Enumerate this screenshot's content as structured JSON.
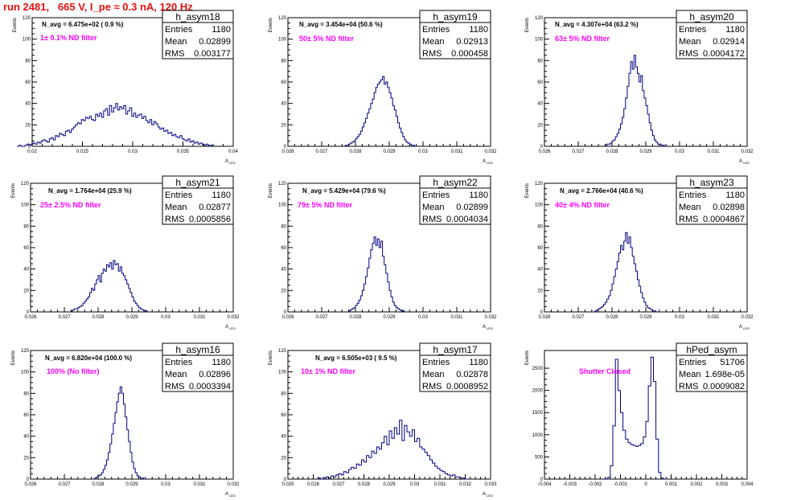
{
  "page": {
    "title": "run 2481,   665 V, I_pe ≈ 0.3 nA, 120 Hz"
  },
  "stat_labels": {
    "entries": "Entries",
    "mean": "Mean",
    "rms": "RMS"
  },
  "colors": {
    "hist": "#000080",
    "title": "#e8100f",
    "filter": "#ff00ff"
  },
  "chart_data": [
    {
      "type": "bar",
      "name": "h_asym18",
      "ylabel": "Events",
      "xlabel": "A_LED",
      "xlim": [
        0.02,
        0.04
      ],
      "ylim": [
        0,
        120
      ],
      "xticks": [
        0.02,
        0.025,
        0.03,
        0.035,
        0.04
      ],
      "xtick_labels": [
        "0.02",
        "0.025",
        "0.03",
        "0.035",
        "0.04"
      ],
      "yticks": [
        0,
        20,
        40,
        60,
        80,
        100,
        120
      ],
      "navg": "N_avg = 6.475e+02 ( 0.9 %)",
      "filter": "1± 0.1% ND filter",
      "stats": {
        "entries": "1180",
        "mean": "0.02899",
        "rms": "0.003177"
      },
      "hist": {
        "x0": 0.0185,
        "bin": 0.0002,
        "values": [
          0,
          1,
          0,
          0,
          1,
          2,
          1,
          2,
          3,
          2,
          4,
          3,
          5,
          6,
          5,
          4,
          7,
          8,
          6,
          10,
          9,
          12,
          11,
          10,
          14,
          15,
          13,
          16,
          18,
          20,
          22,
          21,
          25,
          24,
          27,
          26,
          28,
          25,
          24,
          30,
          28,
          31,
          27,
          33,
          35,
          29,
          38,
          32,
          36,
          40,
          34,
          37,
          35,
          38,
          30,
          33,
          36,
          28,
          31,
          27,
          29,
          30,
          26,
          28,
          24,
          22,
          25,
          20,
          23,
          21,
          18,
          16,
          17,
          14,
          15,
          12,
          13,
          10,
          11,
          9,
          8,
          10,
          7,
          6,
          5,
          7,
          4,
          5,
          3,
          4,
          2,
          3,
          2,
          1,
          2,
          1,
          1,
          0
        ]
      }
    },
    {
      "type": "bar",
      "name": "h_asym19",
      "ylabel": "Events",
      "xlabel": "A_LED",
      "xlim": [
        0.026,
        0.032
      ],
      "ylim": [
        0,
        120
      ],
      "xticks": [
        0.026,
        0.027,
        0.028,
        0.029,
        0.03,
        0.031,
        0.032
      ],
      "xtick_labels": [
        "0.026",
        "0.027",
        "0.028",
        "0.029",
        "0.03",
        "0.031",
        "0.032"
      ],
      "yticks": [
        0,
        20,
        40,
        60,
        80,
        100,
        120
      ],
      "navg": "N_avg = 3.454e+04 (50.6 %)",
      "filter": "50± 5% ND filter",
      "stats": {
        "entries": "1180",
        "mean": "0.02913",
        "rms": "0.000458"
      },
      "hist": {
        "x0": 0.0277,
        "bin": 5e-05,
        "values": [
          1,
          1,
          2,
          3,
          4,
          5,
          7,
          9,
          11,
          14,
          18,
          22,
          26,
          31,
          35,
          40,
          44,
          50,
          55,
          58,
          60,
          62,
          65,
          58,
          60,
          55,
          50,
          45,
          38,
          34,
          28,
          22,
          17,
          13,
          9,
          6,
          4,
          3,
          2,
          1,
          1,
          0
        ]
      }
    },
    {
      "type": "bar",
      "name": "h_asym20",
      "ylabel": "Events",
      "xlabel": "A_LED",
      "xlim": [
        0.026,
        0.032
      ],
      "ylim": [
        0,
        120
      ],
      "xticks": [
        0.026,
        0.027,
        0.028,
        0.029,
        0.03,
        0.031,
        0.032
      ],
      "xtick_labels": [
        "0.026",
        "0.027",
        "0.028",
        "0.029",
        "0.03",
        "0.031",
        "0.032"
      ],
      "yticks": [
        0,
        20,
        40,
        60,
        80,
        100,
        120
      ],
      "navg": "N_avg = 4.307e+04 (63.2 %)",
      "filter": "63± 5% ND filter",
      "stats": {
        "entries": "1180",
        "mean": "0.02914",
        "rms": "0.0004172"
      },
      "hist": {
        "x0": 0.0278,
        "bin": 5e-05,
        "values": [
          1,
          2,
          2,
          3,
          5,
          6,
          9,
          12,
          16,
          21,
          27,
          35,
          45,
          56,
          68,
          79,
          72,
          85,
          74,
          68,
          60,
          66,
          52,
          45,
          38,
          30,
          22,
          15,
          10,
          6,
          4,
          2,
          2,
          1,
          1,
          0
        ]
      }
    },
    {
      "type": "bar",
      "name": "h_asym21",
      "ylabel": "Events",
      "xlabel": "A_LED",
      "xlim": [
        0.026,
        0.032
      ],
      "ylim": [
        0,
        120
      ],
      "xticks": [
        0.026,
        0.027,
        0.028,
        0.029,
        0.03,
        0.031,
        0.032
      ],
      "xtick_labels": [
        "0.026",
        "0.027",
        "0.028",
        "0.029",
        "0.03",
        "0.031",
        "0.032"
      ],
      "yticks": [
        0,
        20,
        40,
        60,
        80,
        100,
        120
      ],
      "navg": "N_avg = 1.764e+04 (25.9 %)",
      "filter": "25± 2.5% ND filter",
      "stats": {
        "entries": "1180",
        "mean": "0.02877",
        "rms": "0.0005856"
      },
      "hist": {
        "x0": 0.0272,
        "bin": 5e-05,
        "values": [
          1,
          2,
          3,
          3,
          4,
          5,
          6,
          8,
          10,
          12,
          14,
          18,
          22,
          20,
          26,
          30,
          34,
          28,
          36,
          40,
          38,
          44,
          42,
          46,
          40,
          48,
          44,
          45,
          38,
          42,
          36,
          34,
          30,
          26,
          22,
          18,
          14,
          10,
          8,
          6,
          4,
          3,
          2,
          1,
          1,
          0
        ]
      }
    },
    {
      "type": "bar",
      "name": "h_asym22",
      "ylabel": "Events",
      "xlabel": "A_LED",
      "xlim": [
        0.026,
        0.032
      ],
      "ylim": [
        0,
        120
      ],
      "xticks": [
        0.026,
        0.027,
        0.028,
        0.029,
        0.03,
        0.031,
        0.032
      ],
      "xtick_labels": [
        "0.026",
        "0.027",
        "0.028",
        "0.029",
        "0.03",
        "0.031",
        "0.032"
      ],
      "yticks": [
        0,
        20,
        40,
        60,
        80,
        100,
        120
      ],
      "navg": "N_avg = 5.429e+04 (79.6 %)",
      "filter": "79± 5% ND filter",
      "stats": {
        "entries": "1180",
        "mean": "0.02899",
        "rms": "0.0004034"
      },
      "hist": {
        "x0": 0.0278,
        "bin": 5e-05,
        "values": [
          1,
          2,
          3,
          4,
          6,
          8,
          11,
          15,
          20,
          26,
          33,
          41,
          50,
          58,
          64,
          70,
          62,
          68,
          60,
          66,
          52,
          44,
          36,
          28,
          20,
          14,
          9,
          6,
          4,
          3,
          2,
          1,
          1,
          0
        ]
      }
    },
    {
      "type": "bar",
      "name": "h_asym23",
      "ylabel": "Events",
      "xlabel": "A_LED",
      "xlim": [
        0.026,
        0.032
      ],
      "ylim": [
        0,
        120
      ],
      "xticks": [
        0.026,
        0.027,
        0.028,
        0.029,
        0.03,
        0.031,
        0.032
      ],
      "xtick_labels": [
        "0.026",
        "0.027",
        "0.028",
        "0.029",
        "0.03",
        "0.031",
        "0.032"
      ],
      "yticks": [
        0,
        20,
        40,
        60,
        80,
        100,
        120
      ],
      "navg": "N_avg = 2.766e+04 (40.6 %)",
      "filter": "40± 4% ND filter",
      "stats": {
        "entries": "1180",
        "mean": "0.02898",
        "rms": "0.0004867"
      },
      "hist": {
        "x0": 0.0275,
        "bin": 5e-05,
        "values": [
          1,
          2,
          3,
          4,
          5,
          7,
          9,
          12,
          15,
          20,
          26,
          33,
          40,
          47,
          55,
          62,
          58,
          66,
          74,
          64,
          70,
          60,
          52,
          45,
          38,
          30,
          24,
          18,
          13,
          9,
          6,
          4,
          3,
          2,
          1,
          1,
          0
        ]
      }
    },
    {
      "type": "bar",
      "name": "h_asym16",
      "ylabel": "Events",
      "xlabel": "A_LED",
      "xlim": [
        0.026,
        0.032
      ],
      "ylim": [
        0,
        120
      ],
      "xticks": [
        0.026,
        0.027,
        0.028,
        0.029,
        0.03,
        0.031,
        0.032
      ],
      "xtick_labels": [
        "0.026",
        "0.027",
        "0.028",
        "0.029",
        "0.03",
        "0.031",
        "0.032"
      ],
      "yticks": [
        0,
        20,
        40,
        60,
        80,
        100,
        120
      ],
      "navg": "N_avg = 6.820e+04 (100.0 %)",
      "filter": "100% (No filter)",
      "stats": {
        "entries": "1180",
        "mean": "0.02896",
        "rms": "0.0003394"
      },
      "hist": {
        "x0": 0.0279,
        "bin": 5e-05,
        "values": [
          1,
          2,
          3,
          4,
          6,
          9,
          13,
          18,
          25,
          33,
          42,
          52,
          62,
          72,
          80,
          86,
          80,
          70,
          58,
          46,
          35,
          25,
          16,
          10,
          6,
          3,
          2,
          1,
          1,
          0
        ]
      }
    },
    {
      "type": "bar",
      "name": "h_asym17",
      "ylabel": "Events",
      "xlabel": "A_LED",
      "xlim": [
        0.025,
        0.033
      ],
      "ylim": [
        0,
        120
      ],
      "xticks": [
        0.025,
        0.026,
        0.027,
        0.028,
        0.029,
        0.03,
        0.031,
        0.032,
        0.033
      ],
      "xtick_labels": [
        "0.025",
        "0.026",
        "0.027",
        "0.028",
        "0.029",
        "0.03",
        "0.031",
        "0.032",
        "0.033"
      ],
      "yticks": [
        0,
        20,
        40,
        60,
        80,
        100,
        120
      ],
      "navg": "N_avg = 6.505e+03 ( 9.5 %)",
      "filter": "10± 1% ND filter",
      "stats": {
        "entries": "1180",
        "mean": "0.02878",
        "rms": "0.0008952"
      },
      "hist": {
        "x0": 0.0262,
        "bin": 0.0001,
        "values": [
          1,
          0,
          1,
          2,
          1,
          3,
          2,
          4,
          5,
          4,
          7,
          6,
          9,
          11,
          10,
          14,
          13,
          18,
          16,
          22,
          20,
          26,
          24,
          30,
          28,
          34,
          40,
          32,
          45,
          38,
          48,
          42,
          55,
          36,
          50,
          44,
          40,
          46,
          35,
          38,
          30,
          28,
          25,
          22,
          18,
          15,
          12,
          10,
          8,
          7,
          5,
          4,
          3,
          4,
          2,
          2,
          1,
          1,
          0
        ]
      }
    },
    {
      "type": "bar",
      "name": "hPed_asym",
      "ylabel": "Events",
      "xlabel": "",
      "xlim": [
        -0.004,
        0.004
      ],
      "ylim": [
        0,
        2900
      ],
      "xticks": [
        -0.004,
        -0.003,
        -0.002,
        -0.001,
        0,
        0.001,
        0.002,
        0.003,
        0.004
      ],
      "xtick_labels": [
        "-0.004",
        "-0.003",
        "-0.002",
        "-0.001",
        "0",
        "0.001",
        "0.002",
        "0.003",
        "0.004"
      ],
      "yticks": [
        0,
        500,
        1000,
        1500,
        2000,
        2500
      ],
      "navg": "",
      "filter": "Shutter Closed",
      "stats": {
        "entries": "51706",
        "mean": "1.698e-05",
        "rms": "0.0009082"
      },
      "hist": {
        "x0": -0.0016,
        "bin": 0.0001,
        "values": [
          5,
          40,
          300,
          1200,
          2700,
          2000,
          1500,
          1100,
          900,
          820,
          780,
          760,
          740,
          760,
          800,
          950,
          1300,
          2100,
          2750,
          2200,
          900,
          150,
          20,
          0
        ]
      }
    }
  ]
}
